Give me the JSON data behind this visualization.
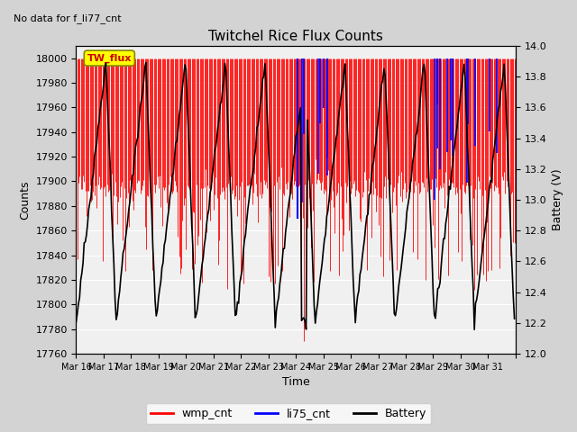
{
  "title": "Twitchel Rice Flux Counts",
  "subtitle": "No data for f_li77_cnt",
  "xlabel": "Time",
  "ylabel_left": "Counts",
  "ylabel_right": "Battery (V)",
  "ylim_left": [
    17760,
    18010
  ],
  "ylim_right": [
    12.0,
    14.0
  ],
  "yticks_left": [
    17760,
    17780,
    17800,
    17820,
    17840,
    17860,
    17880,
    17900,
    17920,
    17940,
    17960,
    17980,
    18000
  ],
  "yticks_right": [
    12.0,
    12.2,
    12.4,
    12.6,
    12.8,
    13.0,
    13.2,
    13.4,
    13.6,
    13.8,
    14.0
  ],
  "xtick_labels": [
    "Mar 16",
    "Mar 17",
    "Mar 18",
    "Mar 19",
    "Mar 20",
    "Mar 21",
    "Mar 22",
    "Mar 23",
    "Mar 24",
    "Mar 25",
    "Mar 26",
    "Mar 27",
    "Mar 28",
    "Mar 29",
    "Mar 30",
    "Mar 31"
  ],
  "num_days": 16,
  "wmp_color": "#ff0000",
  "li75_color": "#0000ff",
  "battery_color": "#000000",
  "bg_color": "#d3d3d3",
  "plot_bg_color": "#f0f0f0",
  "legend_box_facecolor": "#ffff00",
  "legend_box_text": "TW_flux",
  "legend_box_textcolor": "#cc0000",
  "seed": 42
}
